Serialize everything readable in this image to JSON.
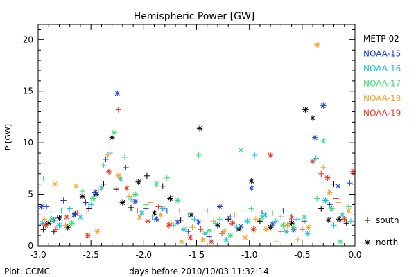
{
  "chart_data": {
    "type": "scatter",
    "title": "Hemispheric Power [GW]",
    "xlabel": "days before 2010/10/03 11:32:14",
    "ylabel": "P [GW]",
    "xlim": [
      -3.0,
      0.0
    ],
    "ylim": [
      0,
      21.5
    ],
    "x_ticks": [
      -3.0,
      -2.5,
      -2.0,
      -1.5,
      -1.0,
      -0.5,
      0.0
    ],
    "x_tick_labels": [
      "-3.0",
      "-2.5",
      "-2.0",
      "-1.5",
      "-1.0",
      "-0.5",
      "0.0"
    ],
    "y_ticks": [
      0,
      5,
      10,
      15,
      20
    ],
    "y_tick_labels": [
      "0",
      "5",
      "10",
      "15",
      "20"
    ],
    "grid": false,
    "legend_position": "right",
    "marker_legend": [
      {
        "symbol": "+",
        "label": "south"
      },
      {
        "symbol": "*",
        "label": "north"
      }
    ],
    "footer": "Plot: CCMC",
    "series": [
      {
        "name": "METP-02",
        "color": "#000000",
        "points": [
          [
            -2.95,
            1.6,
            "+"
          ],
          [
            -2.9,
            2.2,
            "*"
          ],
          [
            -2.85,
            1.4,
            "+"
          ],
          [
            -2.8,
            2.7,
            "*"
          ],
          [
            -2.72,
            1.8,
            "*"
          ],
          [
            -2.65,
            3.1,
            "+"
          ],
          [
            -2.58,
            4.8,
            "*"
          ],
          [
            -2.52,
            3.6,
            "+"
          ],
          [
            -2.45,
            5.0,
            "*"
          ],
          [
            -2.38,
            6.0,
            "+"
          ],
          [
            -2.3,
            10.5,
            "*"
          ],
          [
            -2.26,
            5.5,
            "+"
          ],
          [
            -2.2,
            4.2,
            "*"
          ],
          [
            -2.12,
            3.7,
            "+"
          ],
          [
            -2.05,
            6.2,
            "*"
          ],
          [
            -1.97,
            6.8,
            "+"
          ],
          [
            -1.9,
            3.2,
            "*"
          ],
          [
            -1.82,
            5.8,
            "+"
          ],
          [
            -1.75,
            4.6,
            "*"
          ],
          [
            -1.65,
            2.5,
            "+"
          ],
          [
            -1.55,
            3.0,
            "*"
          ],
          [
            -1.47,
            11.4,
            "*"
          ],
          [
            -1.4,
            3.4,
            "+"
          ],
          [
            -1.3,
            2.0,
            "*"
          ],
          [
            -1.2,
            2.6,
            "+"
          ],
          [
            -1.1,
            1.6,
            "*"
          ],
          [
            -0.98,
            6.3,
            "*"
          ],
          [
            -0.9,
            2.4,
            "+"
          ],
          [
            -0.8,
            1.8,
            "*"
          ],
          [
            -0.7,
            2.8,
            "+"
          ],
          [
            -0.6,
            2.2,
            "*"
          ],
          [
            -0.47,
            13.2,
            "*"
          ],
          [
            -0.4,
            12.4,
            "*"
          ],
          [
            -0.32,
            3.6,
            "+"
          ],
          [
            -0.25,
            2.5,
            "*"
          ],
          [
            -0.2,
            6.0,
            "+"
          ],
          [
            -0.15,
            2.6,
            "*"
          ],
          [
            -0.08,
            2.2,
            "+"
          ]
        ]
      },
      {
        "name": "NOAA-15",
        "color": "#1c3fd6",
        "points": [
          [
            -2.97,
            3.8,
            "*"
          ],
          [
            -2.92,
            3.8,
            "+"
          ],
          [
            -2.85,
            2.5,
            "*"
          ],
          [
            -2.76,
            4.4,
            "+"
          ],
          [
            -2.66,
            3.0,
            "*"
          ],
          [
            -2.55,
            4.2,
            "+"
          ],
          [
            -2.46,
            5.2,
            "*"
          ],
          [
            -2.36,
            8.4,
            "+"
          ],
          [
            -2.25,
            14.8,
            "*"
          ],
          [
            -2.17,
            7.6,
            "+"
          ],
          [
            -2.08,
            4.3,
            "*"
          ],
          [
            -1.98,
            3.6,
            "+"
          ],
          [
            -1.88,
            2.6,
            "*"
          ],
          [
            -1.78,
            3.4,
            "+"
          ],
          [
            -1.68,
            2.3,
            "*"
          ],
          [
            -1.58,
            1.4,
            "+"
          ],
          [
            -1.48,
            2.3,
            "*"
          ],
          [
            -1.38,
            0.9,
            "+"
          ],
          [
            -1.28,
            3.8,
            "*"
          ],
          [
            -1.18,
            2.8,
            "+"
          ],
          [
            -1.08,
            1.9,
            "*"
          ],
          [
            -0.98,
            5.6,
            "*"
          ],
          [
            -0.88,
            3.2,
            "+"
          ],
          [
            -0.78,
            2.1,
            "*"
          ],
          [
            -0.68,
            3.4,
            "+"
          ],
          [
            -0.58,
            1.6,
            "*"
          ],
          [
            -0.48,
            2.4,
            "+"
          ],
          [
            -0.38,
            10.5,
            "*"
          ],
          [
            -0.3,
            13.6,
            "*"
          ],
          [
            -0.24,
            4.0,
            "+"
          ],
          [
            -0.16,
            5.8,
            "*"
          ],
          [
            -0.05,
            6.1,
            "+"
          ]
        ]
      },
      {
        "name": "NOAA-16",
        "color": "#18c1d9",
        "points": [
          [
            -2.96,
            2.2,
            "*"
          ],
          [
            -2.88,
            3.2,
            "+"
          ],
          [
            -2.8,
            2.0,
            "*"
          ],
          [
            -2.7,
            3.6,
            "+"
          ],
          [
            -2.6,
            2.8,
            "*"
          ],
          [
            -2.5,
            4.0,
            "+"
          ],
          [
            -2.4,
            5.6,
            "*"
          ],
          [
            -2.32,
            9.0,
            "+"
          ],
          [
            -2.22,
            6.5,
            "*"
          ],
          [
            -2.12,
            4.5,
            "+"
          ],
          [
            -2.02,
            3.2,
            "*"
          ],
          [
            -1.92,
            2.8,
            "+"
          ],
          [
            -1.82,
            3.6,
            "*"
          ],
          [
            -1.72,
            2.0,
            "+"
          ],
          [
            -1.62,
            1.6,
            "*"
          ],
          [
            -1.52,
            2.6,
            "+"
          ],
          [
            -1.42,
            1.2,
            "*"
          ],
          [
            -1.32,
            2.2,
            "+"
          ],
          [
            -1.22,
            0.6,
            "*"
          ],
          [
            -1.12,
            1.8,
            "+"
          ],
          [
            -1.02,
            2.4,
            "*"
          ],
          [
            -0.95,
            8.8,
            "+"
          ],
          [
            -0.85,
            3.0,
            "*"
          ],
          [
            -0.75,
            2.4,
            "+"
          ],
          [
            -0.65,
            1.4,
            "*"
          ],
          [
            -0.55,
            2.6,
            "+"
          ],
          [
            -0.45,
            1.2,
            "*"
          ],
          [
            -0.37,
            8.5,
            "+"
          ],
          [
            -0.28,
            4.4,
            "*"
          ],
          [
            -0.2,
            2.0,
            "+"
          ],
          [
            -0.12,
            3.0,
            "*"
          ],
          [
            -0.04,
            2.4,
            "+"
          ]
        ]
      },
      {
        "name": "NOAA-17",
        "color": "#2fe06a",
        "points": [
          [
            -2.95,
            6.5,
            "+"
          ],
          [
            -2.87,
            2.6,
            "*"
          ],
          [
            -2.78,
            3.4,
            "+"
          ],
          [
            -2.68,
            2.2,
            "*"
          ],
          [
            -2.58,
            5.3,
            "+"
          ],
          [
            -2.48,
            4.6,
            "*"
          ],
          [
            -2.38,
            7.8,
            "+"
          ],
          [
            -2.28,
            11.0,
            "*"
          ],
          [
            -2.18,
            8.6,
            "+"
          ],
          [
            -2.08,
            5.0,
            "*"
          ],
          [
            -1.98,
            4.0,
            "+"
          ],
          [
            -1.88,
            6.0,
            "*"
          ],
          [
            -1.78,
            6.6,
            "+"
          ],
          [
            -1.68,
            4.4,
            "*"
          ],
          [
            -1.58,
            3.0,
            "+"
          ],
          [
            -1.48,
            8.8,
            "+"
          ],
          [
            -1.38,
            1.5,
            "*"
          ],
          [
            -1.28,
            2.6,
            "+"
          ],
          [
            -1.18,
            1.0,
            "*"
          ],
          [
            -1.08,
            9.3,
            "*"
          ],
          [
            -0.98,
            3.6,
            "+"
          ],
          [
            -0.88,
            2.8,
            "*"
          ],
          [
            -0.78,
            3.2,
            "+"
          ],
          [
            -0.68,
            2.0,
            "*"
          ],
          [
            -0.58,
            1.8,
            "+"
          ],
          [
            -0.48,
            2.8,
            "*"
          ],
          [
            -0.36,
            4.6,
            "+"
          ],
          [
            -0.3,
            10.2,
            "*"
          ],
          [
            -0.22,
            3.6,
            "*"
          ],
          [
            -0.14,
            0.4,
            "*"
          ],
          [
            -0.06,
            3.8,
            "+"
          ]
        ]
      },
      {
        "name": "NOAA-18",
        "color": "#f0a020",
        "points": [
          [
            -2.94,
            2.6,
            "+"
          ],
          [
            -2.84,
            6.0,
            "*"
          ],
          [
            -2.74,
            2.0,
            "+"
          ],
          [
            -2.64,
            5.8,
            "*"
          ],
          [
            -2.54,
            3.4,
            "+"
          ],
          [
            -2.44,
            1.4,
            "*"
          ],
          [
            -2.34,
            8.8,
            "+"
          ],
          [
            -2.24,
            6.8,
            "*"
          ],
          [
            -2.14,
            4.8,
            "+"
          ],
          [
            -2.04,
            2.8,
            "*"
          ],
          [
            -1.94,
            4.2,
            "+"
          ],
          [
            -1.84,
            3.0,
            "*"
          ],
          [
            -1.74,
            2.2,
            "+"
          ],
          [
            -1.64,
            0.4,
            "*"
          ],
          [
            -1.54,
            1.8,
            "+"
          ],
          [
            -1.44,
            0.6,
            "*"
          ],
          [
            -1.34,
            2.4,
            "+"
          ],
          [
            -1.24,
            1.4,
            "*"
          ],
          [
            -1.14,
            3.0,
            "+"
          ],
          [
            -1.04,
            0.8,
            "*"
          ],
          [
            -0.94,
            2.6,
            "+"
          ],
          [
            -0.84,
            1.6,
            "*"
          ],
          [
            -0.74,
            0.4,
            "+"
          ],
          [
            -0.64,
            2.0,
            "*"
          ],
          [
            -0.54,
            0.6,
            "+"
          ],
          [
            -0.44,
            1.8,
            "*"
          ],
          [
            -0.36,
            19.5,
            "*"
          ],
          [
            -0.3,
            7.6,
            "+"
          ],
          [
            -0.24,
            5.2,
            "*"
          ],
          [
            -0.16,
            4.2,
            "+"
          ],
          [
            -0.06,
            3.4,
            "*"
          ]
        ]
      },
      {
        "name": "NOAA-19",
        "color": "#e8321c",
        "points": [
          [
            -2.93,
            2.0,
            "*"
          ],
          [
            -2.83,
            1.6,
            "+"
          ],
          [
            -2.73,
            2.8,
            "*"
          ],
          [
            -2.63,
            3.2,
            "+"
          ],
          [
            -2.53,
            1.0,
            "*"
          ],
          [
            -2.43,
            5.4,
            "+"
          ],
          [
            -2.33,
            7.2,
            "*"
          ],
          [
            -2.24,
            13.2,
            "+"
          ],
          [
            -2.16,
            5.6,
            "*"
          ],
          [
            -2.06,
            3.4,
            "+"
          ],
          [
            -1.96,
            2.4,
            "*"
          ],
          [
            -1.86,
            3.8,
            "+"
          ],
          [
            -1.76,
            2.0,
            "*"
          ],
          [
            -1.66,
            3.4,
            "+"
          ],
          [
            -1.56,
            0.8,
            "*"
          ],
          [
            -1.46,
            1.6,
            "+"
          ],
          [
            -1.36,
            0.4,
            "*"
          ],
          [
            -1.26,
            1.2,
            "+"
          ],
          [
            -1.16,
            2.2,
            "*"
          ],
          [
            -1.06,
            3.4,
            "+"
          ],
          [
            -0.96,
            1.6,
            "*"
          ],
          [
            -0.8,
            8.8,
            "*"
          ],
          [
            -0.7,
            1.4,
            "+"
          ],
          [
            -0.6,
            2.8,
            "*"
          ],
          [
            -0.5,
            1.6,
            "+"
          ],
          [
            -0.4,
            8.2,
            "*"
          ],
          [
            -0.32,
            7.0,
            "+"
          ],
          [
            -0.26,
            6.6,
            "*"
          ],
          [
            -0.18,
            4.6,
            "+"
          ],
          [
            -0.1,
            2.6,
            "*"
          ],
          [
            -0.02,
            7.2,
            "*"
          ]
        ]
      }
    ]
  }
}
